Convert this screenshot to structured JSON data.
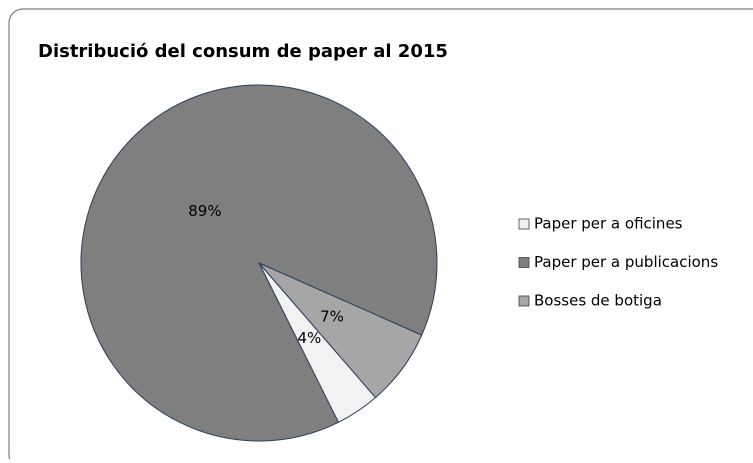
{
  "chart_data": {
    "type": "pie",
    "title": "Distribució del consum de paper al 2015",
    "categories": [
      "Paper per a oficines",
      "Paper per a publicacions",
      "Bosses de botiga"
    ],
    "values": [
      4,
      89,
      7
    ],
    "value_labels": [
      "4%",
      "89%",
      "7%"
    ],
    "colors": [
      "#f2f2f2",
      "#7f7f7f",
      "#a6a6a6"
    ],
    "legend": "right"
  }
}
